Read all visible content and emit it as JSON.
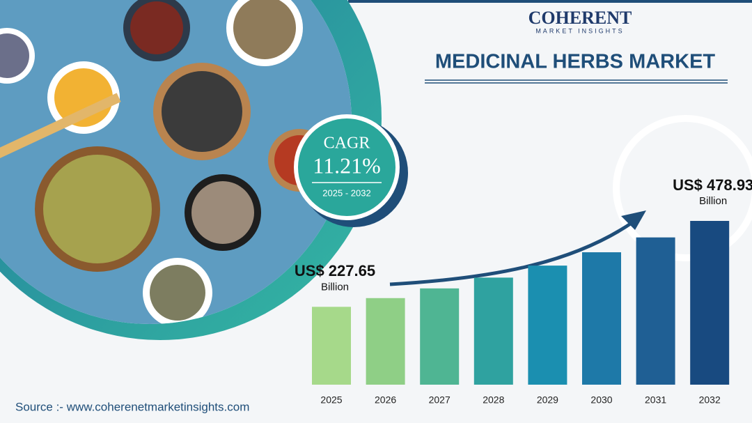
{
  "logo": {
    "name": "COHERENT",
    "tagline": "MARKET INSIGHTS"
  },
  "cagr": {
    "label": "CAGR",
    "value": "11.21%",
    "period": "2025 - 2032"
  },
  "source": "Source :- www.coherenetmarketinsights.com",
  "chart_data": {
    "type": "bar",
    "title": "MEDICINAL HERBS MARKET",
    "unit": "Billion",
    "categories": [
      "2025",
      "2026",
      "2027",
      "2028",
      "2029",
      "2030",
      "2031",
      "2032"
    ],
    "values": [
      227.65,
      253.17,
      281.55,
      313.11,
      348.21,
      387.25,
      430.66,
      478.93
    ],
    "value_labels": [
      "US$ 227.65",
      null,
      null,
      null,
      null,
      null,
      null,
      "US$ 478.93"
    ],
    "colors": [
      "#a6d98a",
      "#8fcf86",
      "#4fb593",
      "#2fa2a0",
      "#1b8fb0",
      "#1e79a8",
      "#1f5f94",
      "#184a80"
    ]
  }
}
